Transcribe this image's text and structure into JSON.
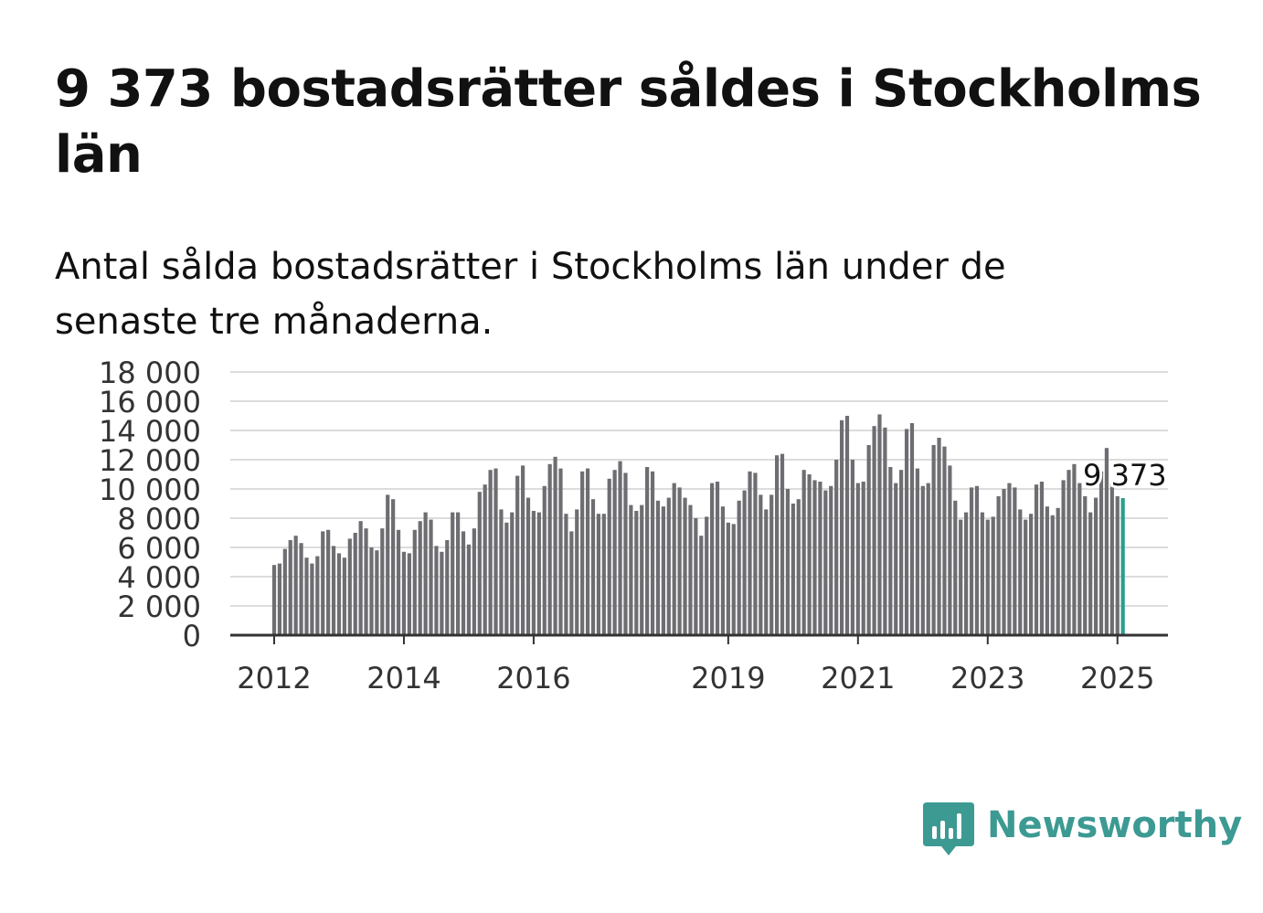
{
  "title": "9 373 bostadsrätter såldes i Stockholms län",
  "subtitle": "Antal sålda bostadsrätter i Stockholms län under de senaste tre månaderna.",
  "brand": {
    "name": "Newsworthy",
    "color": "#3c9a93"
  },
  "chart_data": {
    "type": "bar",
    "start": "2012-01",
    "ylim": [
      0,
      18000
    ],
    "yticks": [
      "0",
      "2 000",
      "4 000",
      "6 000",
      "8 000",
      "10 000",
      "12 000",
      "14 000",
      "16 000",
      "18 000"
    ],
    "xticks": [
      "2012",
      "2014",
      "2016",
      "2019",
      "2021",
      "2023",
      "2025"
    ],
    "values": [
      4800,
      4900,
      5900,
      6500,
      6800,
      6300,
      5300,
      4900,
      5400,
      7100,
      7200,
      6100,
      5600,
      5300,
      6600,
      7000,
      7800,
      7300,
      6000,
      5800,
      7300,
      9600,
      9300,
      7200,
      5700,
      5600,
      7200,
      7800,
      8400,
      7900,
      6100,
      5700,
      6500,
      8400,
      8400,
      7100,
      6200,
      7300,
      9800,
      10300,
      11300,
      11400,
      8600,
      7700,
      8400,
      10900,
      11600,
      9400,
      8500,
      8400,
      10200,
      11700,
      12200,
      11400,
      8300,
      7100,
      8600,
      11200,
      11400,
      9300,
      8300,
      8300,
      10700,
      11300,
      11900,
      11100,
      8900,
      8500,
      8900,
      11500,
      11200,
      9200,
      8800,
      9400,
      10400,
      10100,
      9400,
      8900,
      8000,
      6800,
      8100,
      10400,
      10500,
      8800,
      7700,
      7600,
      9200,
      9900,
      11200,
      11100,
      9600,
      8600,
      9600,
      12300,
      12400,
      10000,
      9000,
      9300,
      11300,
      11000,
      10600,
      10500,
      9900,
      10200,
      12000,
      14700,
      15000,
      12000,
      10400,
      10500,
      13000,
      14300,
      15100,
      14200,
      11500,
      10400,
      11300,
      14100,
      14500,
      11400,
      10200,
      10400,
      13000,
      13500,
      12900,
      11600,
      9200,
      7900,
      8400,
      10100,
      10200,
      8400,
      7900,
      8100,
      9500,
      10000,
      10400,
      10100,
      8600,
      7900,
      8300,
      10300,
      10500,
      8800,
      8200,
      8700,
      10600,
      11300,
      11700,
      10400,
      9500,
      8400,
      9400,
      11200,
      12800,
      10400,
      9500,
      9373
    ],
    "highlight_color": "#2a9d8f",
    "bar_color": "#6d6d72",
    "grid": true,
    "annotation": "9 373"
  }
}
